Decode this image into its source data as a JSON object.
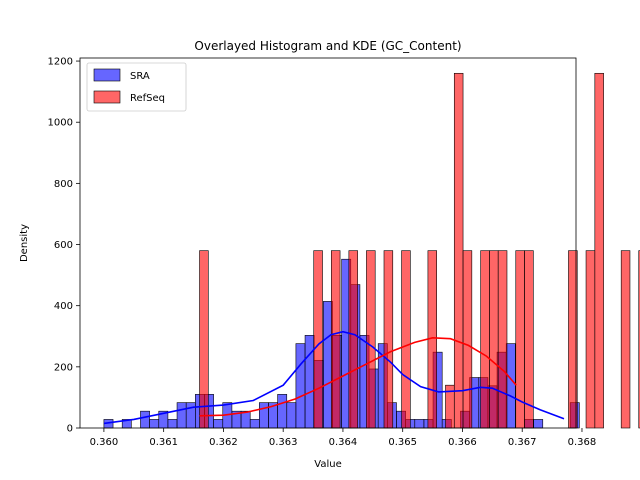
{
  "chart_data": {
    "type": "histogram",
    "title": "Overlayed Histogram and KDE (GC_Content)",
    "xlabel": "Value",
    "ylabel": "Density",
    "xlim": [
      0.3596,
      0.3679
    ],
    "ylim": [
      0,
      1210
    ],
    "xticks": [
      "0.360",
      "0.361",
      "0.362",
      "0.363",
      "0.364",
      "0.365",
      "0.366",
      "0.367",
      "0.368"
    ],
    "xtick_values": [
      0.36,
      0.361,
      0.362,
      0.363,
      0.364,
      0.365,
      0.366,
      0.367,
      0.368
    ],
    "yticks": [
      "0",
      "200",
      "400",
      "600",
      "800",
      "1000",
      "1200"
    ],
    "ytick_values": [
      0,
      200,
      400,
      600,
      800,
      1000,
      1200
    ],
    "legend_position": "top-left",
    "series": [
      {
        "name": "SRA",
        "color": "#0000ff",
        "bin_start": 0.36,
        "bin_width": 0.000153,
        "values": [
          28,
          0,
          28,
          0,
          55,
          28,
          55,
          28,
          83,
          83,
          110,
          110,
          28,
          83,
          55,
          55,
          28,
          83,
          83,
          110,
          83,
          276,
          303,
          221,
          414,
          303,
          552,
          469,
          303,
          193,
          276,
          83,
          55,
          28,
          28,
          28,
          248,
          28,
          0,
          55,
          165,
          165,
          138,
          248,
          276,
          0,
          28,
          28,
          0,
          0,
          0,
          83
        ],
        "kde_x": [
          0.36,
          0.3605,
          0.361,
          0.3615,
          0.362,
          0.3625,
          0.363,
          0.3633,
          0.3636,
          0.3638,
          0.364,
          0.3642,
          0.3645,
          0.3648,
          0.365,
          0.3653,
          0.3656,
          0.366,
          0.3663,
          0.3665,
          0.3668,
          0.367,
          0.3673,
          0.3677
        ],
        "kde_y": [
          15,
          28,
          48,
          68,
          75,
          90,
          140,
          210,
          275,
          305,
          315,
          305,
          265,
          215,
          175,
          135,
          118,
          122,
          133,
          130,
          105,
          85,
          60,
          30
        ]
      },
      {
        "name": "RefSeq",
        "color": "#ff0000",
        "bin_start": 0.3616,
        "bin_width": 0.000147,
        "values": [
          580,
          0,
          0,
          0,
          0,
          0,
          0,
          0,
          0,
          0,
          0,
          0,
          0,
          580,
          0,
          580,
          0,
          580,
          0,
          580,
          0,
          580,
          0,
          580,
          0,
          0,
          580,
          0,
          140,
          1160,
          580,
          0,
          580,
          580,
          580,
          0,
          580,
          580,
          0,
          0,
          0,
          0,
          580,
          0,
          580,
          1160,
          0,
          0,
          580,
          0,
          580
        ],
        "kde_x": [
          0.3616,
          0.362,
          0.3624,
          0.3628,
          0.3632,
          0.3636,
          0.364,
          0.3644,
          0.3648,
          0.3652,
          0.3655,
          0.3658,
          0.3661,
          0.3664,
          0.3667,
          0.3669
        ],
        "kde_y": [
          40,
          42,
          52,
          70,
          95,
          130,
          170,
          210,
          250,
          280,
          295,
          292,
          270,
          235,
          185,
          140
        ]
      }
    ]
  }
}
